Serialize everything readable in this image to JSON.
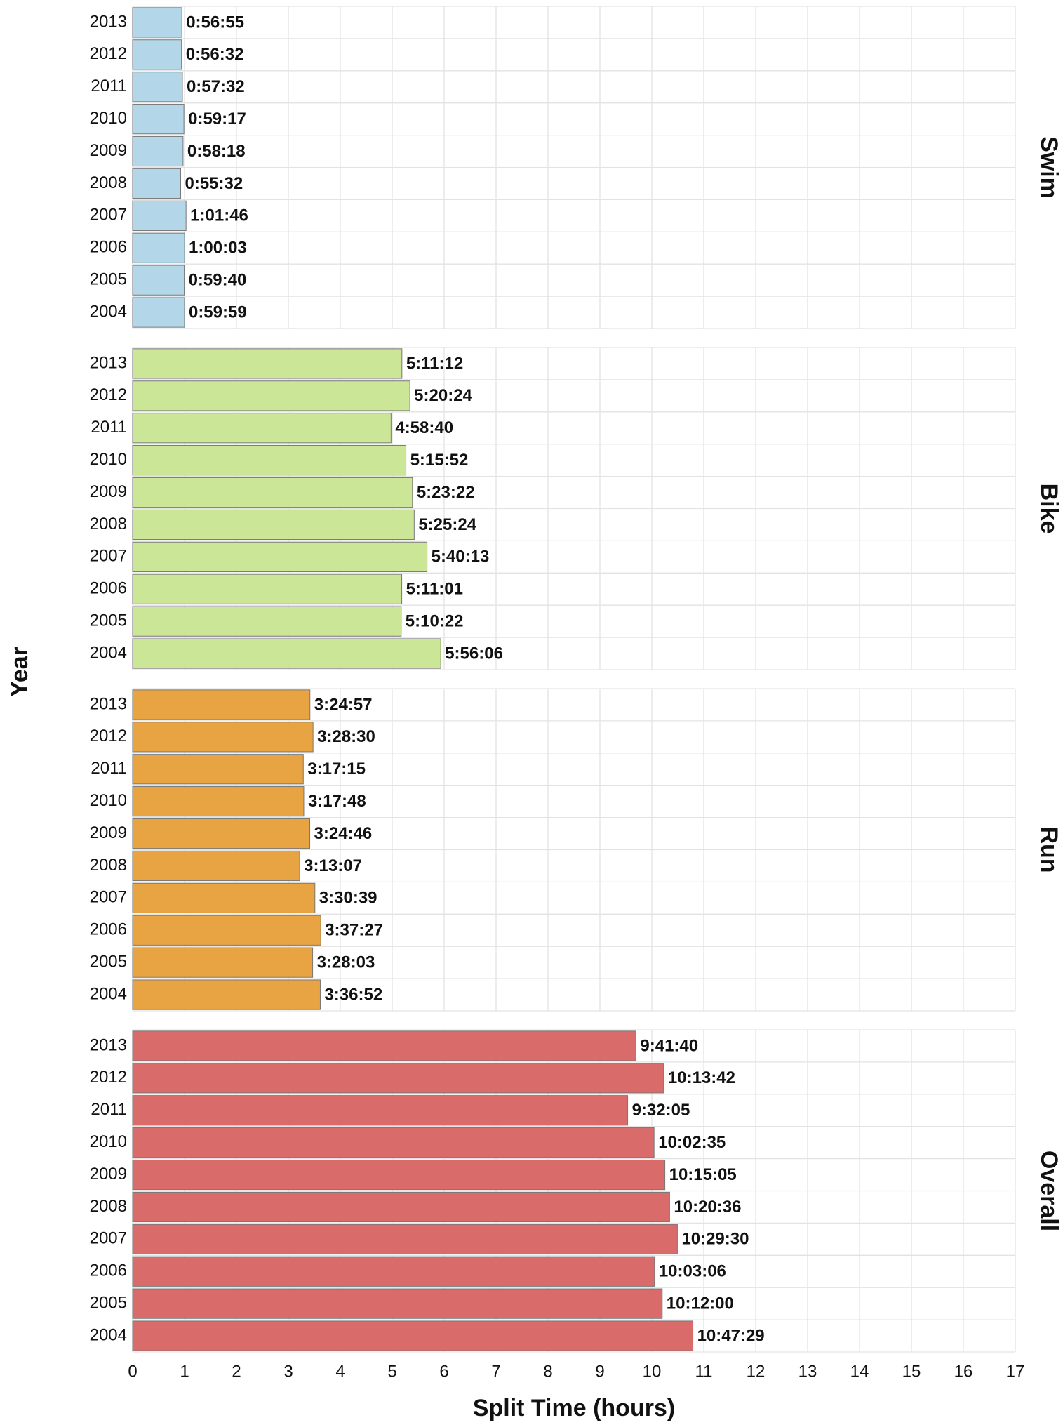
{
  "chart_data": {
    "type": "bar",
    "orientation": "horizontal",
    "xlabel": "Split Time (hours)",
    "ylabel": "Year",
    "categories": [
      "2013",
      "2012",
      "2011",
      "2010",
      "2009",
      "2008",
      "2007",
      "2006",
      "2005",
      "2004"
    ],
    "series": [
      {
        "name": "Swim",
        "color": "#b3d6e8",
        "values": [
          0.9486,
          0.9422,
          0.9589,
          0.9881,
          0.9717,
          0.9256,
          1.0294,
          1.0008,
          0.9944,
          0.9997
        ],
        "value_labels": [
          "0:56:55",
          "0:56:32",
          "0:57:32",
          "0:59:17",
          "0:58:18",
          "0:55:32",
          "1:01:46",
          "1:00:03",
          "0:59:40",
          "0:59:59"
        ]
      },
      {
        "name": "Bike",
        "color": "#cbe696",
        "values": [
          5.1867,
          5.34,
          4.9778,
          5.2644,
          5.3894,
          5.4233,
          5.6703,
          5.1836,
          5.1728,
          5.935
        ],
        "value_labels": [
          "5:11:12",
          "5:20:24",
          "4:58:40",
          "5:15:52",
          "5:23:22",
          "5:25:24",
          "5:40:13",
          "5:11:01",
          "5:10:22",
          "5:56:06"
        ]
      },
      {
        "name": "Run",
        "color": "#e8a443",
        "values": [
          3.4158,
          3.475,
          3.2875,
          3.2967,
          3.4128,
          3.2186,
          3.5108,
          3.6242,
          3.4675,
          3.6144
        ],
        "value_labels": [
          "3:24:57",
          "3:28:30",
          "3:17:15",
          "3:17:48",
          "3:24:46",
          "3:13:07",
          "3:30:39",
          "3:37:27",
          "3:28:03",
          "3:36:52"
        ]
      },
      {
        "name": "Overall",
        "color": "#d96b6b",
        "values": [
          9.6944,
          10.2283,
          9.5347,
          10.0431,
          10.2514,
          10.3433,
          10.4917,
          10.0517,
          10.2,
          10.7914
        ],
        "value_labels": [
          "9:41:40",
          "10:13:42",
          "9:32:05",
          "10:02:35",
          "10:15:05",
          "10:20:36",
          "10:29:30",
          "10:03:06",
          "10:12:00",
          "10:47:29"
        ]
      }
    ],
    "xlim": [
      0,
      17
    ],
    "xticks": [
      0,
      1,
      2,
      3,
      4,
      5,
      6,
      7,
      8,
      9,
      10,
      11,
      12,
      13,
      14,
      15,
      16,
      17
    ],
    "grid": true
  }
}
